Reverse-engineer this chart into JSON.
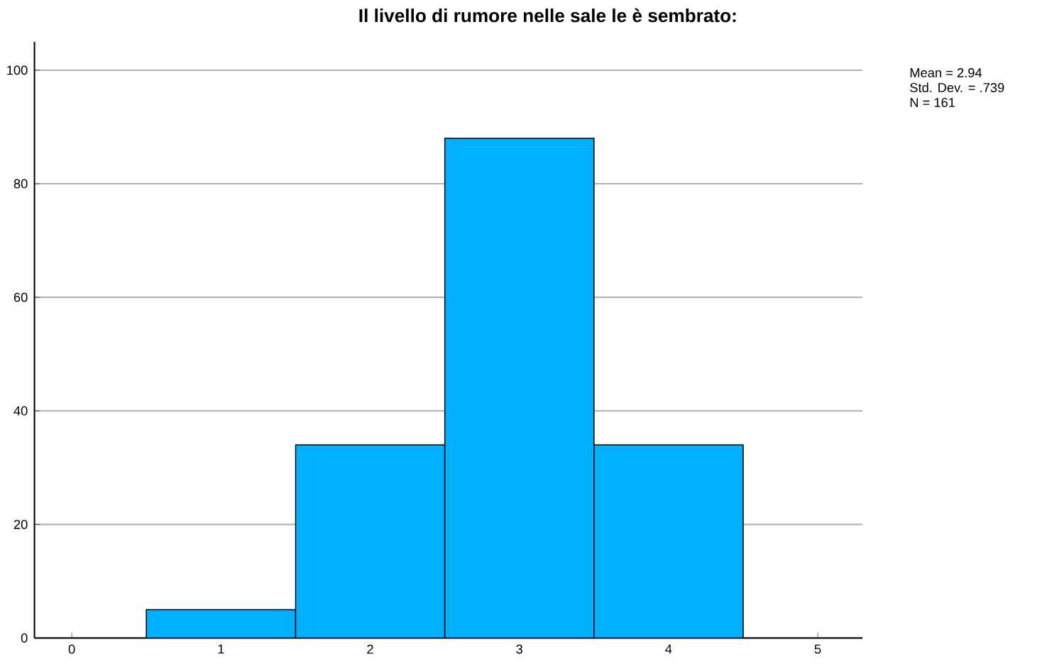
{
  "chart_data": {
    "type": "histogram",
    "title": "Il livello di rumore nelle sale le è sembrato:",
    "bins": [
      0.5,
      1.5,
      2.5,
      3.5,
      4.5
    ],
    "values": [
      5,
      34,
      88,
      34
    ],
    "color": "#00b0ff",
    "xlim": [
      -0.25,
      5.3
    ],
    "ylim": [
      0,
      105
    ],
    "xticks": [
      0,
      1,
      2,
      3,
      4,
      5
    ],
    "yticks": [
      0,
      20,
      40,
      60,
      80,
      100
    ],
    "grid": "y",
    "annotations": [
      "Mean = 2.94",
      "Std. Dev. = .739",
      "N = 161"
    ]
  }
}
